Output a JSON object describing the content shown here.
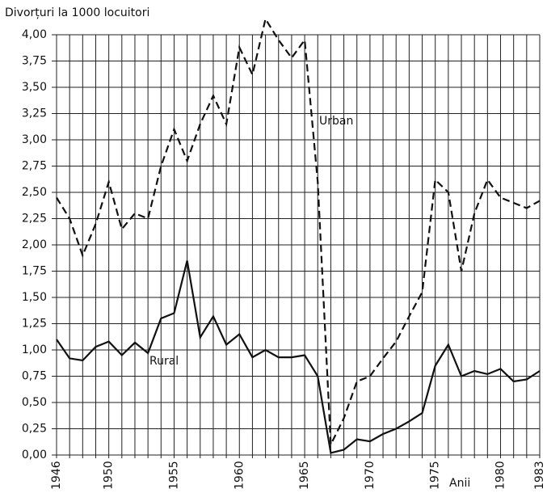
{
  "chart_data": {
    "type": "line",
    "title": "Divorțuri la 1000 locuitori",
    "x_label": "Anii",
    "x": [
      1946,
      1947,
      1948,
      1949,
      1950,
      1951,
      1952,
      1953,
      1954,
      1955,
      1956,
      1957,
      1958,
      1959,
      1960,
      1961,
      1962,
      1963,
      1964,
      1965,
      1966,
      1967,
      1968,
      1969,
      1970,
      1971,
      1972,
      1973,
      1974,
      1975,
      1976,
      1977,
      1978,
      1979,
      1980,
      1981,
      1982,
      1983
    ],
    "series": [
      {
        "name": "Urban",
        "color": "#111111",
        "dash": true,
        "values": [
          2.45,
          2.25,
          1.9,
          2.2,
          2.6,
          2.15,
          2.3,
          2.25,
          2.75,
          3.1,
          2.8,
          3.15,
          3.42,
          3.15,
          3.88,
          3.62,
          4.15,
          3.95,
          3.78,
          3.95,
          2.6,
          0.1,
          0.35,
          0.7,
          0.75,
          0.92,
          1.08,
          1.32,
          1.55,
          2.62,
          2.5,
          1.75,
          2.3,
          2.62,
          2.45,
          2.4,
          2.35,
          2.42
        ]
      },
      {
        "name": "Rural",
        "color": "#111111",
        "dash": false,
        "values": [
          1.1,
          0.92,
          0.9,
          1.03,
          1.08,
          0.95,
          1.07,
          0.97,
          1.3,
          1.35,
          1.85,
          1.12,
          1.32,
          1.05,
          1.15,
          0.93,
          1.0,
          0.93,
          0.93,
          0.95,
          0.75,
          0.02,
          0.05,
          0.15,
          0.13,
          0.2,
          0.25,
          0.32,
          0.4,
          0.85,
          1.05,
          0.75,
          0.8,
          0.77,
          0.82,
          0.7,
          0.72,
          0.8
        ]
      }
    ],
    "xlim": [
      1946,
      1983
    ],
    "xticks": [
      1946,
      1950,
      1955,
      1960,
      1965,
      1970,
      1975,
      1980,
      1983
    ],
    "ylim": [
      0,
      4
    ],
    "yticks": [
      {
        "value": 0,
        "label": "0,00"
      },
      {
        "value": 0.25,
        "label": "0,25"
      },
      {
        "value": 0.5,
        "label": "0,50"
      },
      {
        "value": 0.75,
        "label": "0,75"
      },
      {
        "value": 1,
        "label": "1,00"
      },
      {
        "value": 1.25,
        "label": "1,25"
      },
      {
        "value": 1.5,
        "label": "1,50"
      },
      {
        "value": 1.75,
        "label": "1,75"
      },
      {
        "value": 2,
        "label": "2,00"
      },
      {
        "value": 2.25,
        "label": "2,25"
      },
      {
        "value": 2.5,
        "label": "2,50"
      },
      {
        "value": 2.75,
        "label": "2,75"
      },
      {
        "value": 3,
        "label": "3,00"
      },
      {
        "value": 3.25,
        "label": "3,25"
      },
      {
        "value": 3.5,
        "label": "3,50"
      },
      {
        "value": 3.75,
        "label": "3,75"
      },
      {
        "value": 4,
        "label": "4,00"
      }
    ],
    "grid": true
  }
}
